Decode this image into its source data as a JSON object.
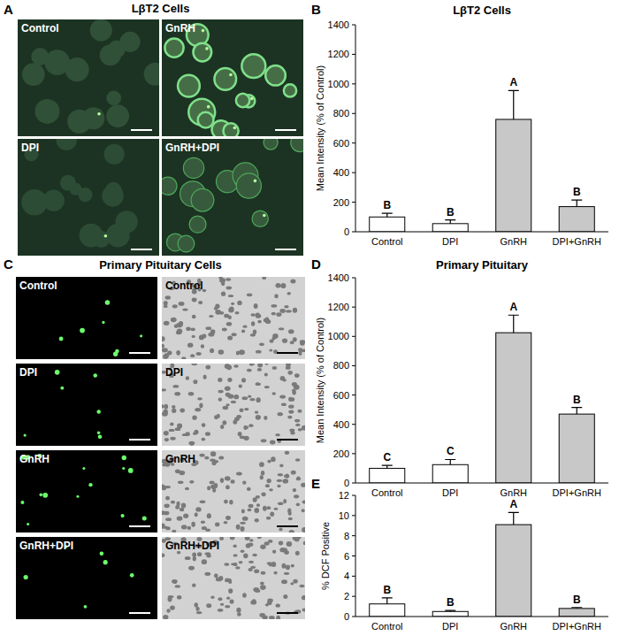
{
  "chart_data": [
    {
      "type": "bar",
      "panel": "B",
      "title": "LβT2 Cells",
      "y_label": "Mean Intensity (% of Control)",
      "categories": [
        "Control",
        "DPI",
        "GnRH",
        "DPI+GnRH"
      ],
      "values": [
        100,
        55,
        760,
        170
      ],
      "errors": [
        25,
        25,
        195,
        45
      ],
      "annotations": [
        "B",
        "B",
        "A",
        "B"
      ],
      "colors": [
        "#ffffff",
        "#ffffff",
        "#c8c8c8",
        "#c8c8c8"
      ],
      "ylim": [
        0,
        1400
      ],
      "yticks": [
        0,
        200,
        400,
        600,
        800,
        1000,
        1200,
        1400
      ],
      "grid": false
    },
    {
      "type": "bar",
      "panel": "D",
      "title": "Primary Pituitary",
      "y_label": "Mean Intensity (% of Control)",
      "categories": [
        "Control",
        "DPI",
        "GnRH",
        "DPI+GnRH"
      ],
      "values": [
        100,
        125,
        1025,
        470
      ],
      "errors": [
        20,
        35,
        120,
        45
      ],
      "annotations": [
        "C",
        "C",
        "A",
        "B"
      ],
      "colors": [
        "#ffffff",
        "#ffffff",
        "#c8c8c8",
        "#c8c8c8"
      ],
      "ylim": [
        0,
        1400
      ],
      "yticks": [
        0,
        200,
        400,
        600,
        800,
        1000,
        1200,
        1400
      ],
      "grid": false
    },
    {
      "type": "bar",
      "panel": "E",
      "y_label": "% DCF Positive",
      "categories": [
        "Control",
        "DPI",
        "GnRH",
        "DPI+GnRH"
      ],
      "values": [
        1.25,
        0.5,
        9.1,
        0.8
      ],
      "errors": [
        0.6,
        0.1,
        1.2,
        0.1
      ],
      "annotations": [
        "B",
        "B",
        "A",
        "B"
      ],
      "colors": [
        "#ffffff",
        "#ffffff",
        "#c8c8c8",
        "#c8c8c8"
      ],
      "ylim": [
        0,
        12
      ],
      "yticks": [
        0,
        2,
        4,
        6,
        8,
        10,
        12
      ],
      "grid": false
    }
  ],
  "image_panels": [
    {
      "panel": "A",
      "title": "LβT2 Cells",
      "labels": [
        "Control",
        "GnRH",
        "DPI",
        "GnRH+DPI"
      ]
    },
    {
      "panel": "C",
      "title": "Primary Pituitary Cells",
      "labels": [
        "Control",
        "Control",
        "DPI",
        "DPI",
        "GnRH",
        "GnRH",
        "GnRH+DPI",
        "GnRH+DPI"
      ]
    }
  ]
}
